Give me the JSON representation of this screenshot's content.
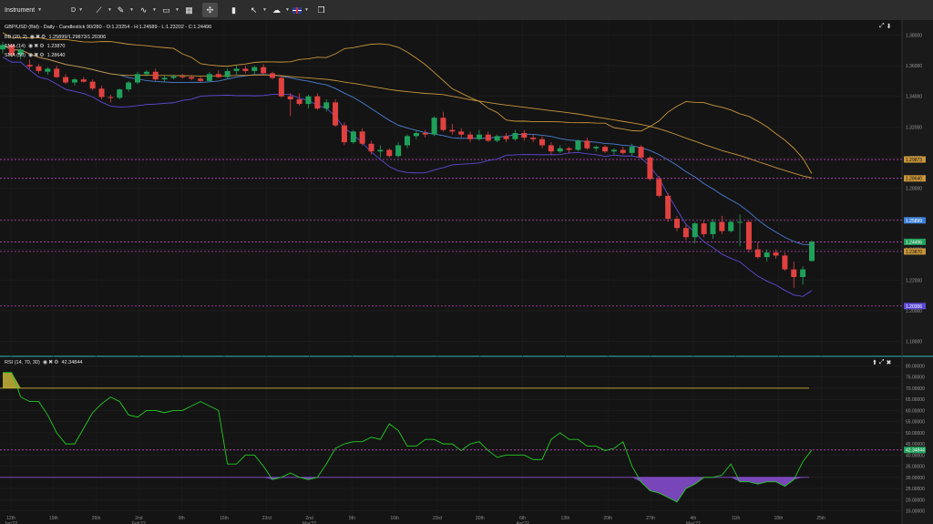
{
  "toolbar": {
    "instrument_label": "Instrument",
    "timeframe_label": "D",
    "icons": [
      "line-tool-icon",
      "pencil-icon",
      "indicator-icon",
      "layout-icon",
      "template-icon",
      "crosshair-icon",
      "bar-chart-icon",
      "cursor-icon",
      "draw-icon",
      "flag-icon",
      "window-icon"
    ]
  },
  "main_legend": {
    "header": "GBP/USD (Bid) - Daily - Candlestick   90/280 - O:1.23254 - H:1.24589 - L:1.23202 - C:1.24496",
    "bb": {
      "name": "BB (20, 2)",
      "value": "1.25899/1.29873/1.20306"
    },
    "sma14": {
      "name": "SMA (14)",
      "value": "1.23870"
    },
    "sma50": {
      "name": "SMA (50)",
      "value": "1.28640"
    }
  },
  "rsi_legend": {
    "name": "RSI (14, 70, 30)",
    "value": "42.34844"
  },
  "colors": {
    "up": "#1fa05a",
    "down": "#e0413f",
    "bb_upper_lower": "#c8953a",
    "sma14": "#4a7fd6",
    "sma50_lower": "#5c4ad6",
    "rsi_line": "#22cc22",
    "rsi_fill_low": "#8a4fd6",
    "rsi_fill_high": "#c8b43a",
    "dashed": "#d050d0"
  },
  "chart_data": {
    "type": "candlestick",
    "price_axis": {
      "ticks": [
        "1.38000",
        "1.36000",
        "1.34000",
        "1.32000",
        "1.30000",
        "1.28000",
        "1.26000",
        "1.24000",
        "1.22000",
        "1.20000",
        "1.18000"
      ],
      "ylim": [
        1.175,
        1.385
      ]
    },
    "price_badges": [
      {
        "value": "1.29873",
        "color": "#c8953a",
        "text_color": "#111111"
      },
      {
        "value": "1.28640",
        "color": "#c8953a",
        "text_color": "#111111"
      },
      {
        "value": "1.25899",
        "color": "#3a7fd6",
        "text_color": "#ffffff"
      },
      {
        "value": "1.24496",
        "color": "#1fa05a",
        "text_color": "#ffffff"
      },
      {
        "value": "1.23870",
        "color": "#c8953a",
        "text_color": "#111111"
      },
      {
        "value": "1.20306",
        "color": "#5c4ad6",
        "text_color": "#ffffff"
      }
    ],
    "horizontal_levels": [
      1.29873,
      1.2864,
      1.25899,
      1.24496,
      1.2387,
      1.20306
    ],
    "candles": [
      [
        1.3706,
        1.3755,
        1.368,
        1.3735
      ],
      [
        1.3735,
        1.374,
        1.3655,
        1.367
      ],
      [
        1.367,
        1.3715,
        1.364,
        1.3705
      ],
      [
        1.3605,
        1.364,
        1.358,
        1.3595
      ],
      [
        1.3595,
        1.361,
        1.355,
        1.3565
      ],
      [
        1.356,
        1.359,
        1.354,
        1.358
      ],
      [
        1.358,
        1.36,
        1.352,
        1.3525
      ],
      [
        1.3525,
        1.3545,
        1.348,
        1.349
      ],
      [
        1.349,
        1.352,
        1.347,
        1.351
      ],
      [
        1.351,
        1.3525,
        1.349,
        1.3495
      ],
      [
        1.3495,
        1.351,
        1.344,
        1.345
      ],
      [
        1.345,
        1.347,
        1.338,
        1.3395
      ],
      [
        1.3395,
        1.341,
        1.336,
        1.339
      ],
      [
        1.339,
        1.345,
        1.338,
        1.3445
      ],
      [
        1.3445,
        1.35,
        1.343,
        1.349
      ],
      [
        1.349,
        1.356,
        1.348,
        1.3545
      ],
      [
        1.3545,
        1.357,
        1.353,
        1.356
      ],
      [
        1.356,
        1.358,
        1.35,
        1.351
      ],
      [
        1.351,
        1.354,
        1.349,
        1.352
      ],
      [
        1.352,
        1.354,
        1.351,
        1.353
      ],
      [
        1.353,
        1.3545,
        1.3515,
        1.3525
      ],
      [
        1.3525,
        1.354,
        1.3505,
        1.3515
      ],
      [
        1.3515,
        1.353,
        1.349,
        1.35
      ],
      [
        1.35,
        1.356,
        1.3495,
        1.3545
      ],
      [
        1.3545,
        1.357,
        1.352,
        1.3525
      ],
      [
        1.3525,
        1.358,
        1.3515,
        1.3565
      ],
      [
        1.3565,
        1.36,
        1.354,
        1.358
      ],
      [
        1.358,
        1.36,
        1.355,
        1.3565
      ],
      [
        1.3565,
        1.36,
        1.3545,
        1.359
      ],
      [
        1.359,
        1.361,
        1.354,
        1.355
      ],
      [
        1.355,
        1.356,
        1.351,
        1.352
      ],
      [
        1.352,
        1.354,
        1.339,
        1.34
      ],
      [
        1.34,
        1.342,
        1.327,
        1.338
      ],
      [
        1.338,
        1.342,
        1.334,
        1.335
      ],
      [
        1.335,
        1.341,
        1.332,
        1.34
      ],
      [
        1.34,
        1.342,
        1.331,
        1.332
      ],
      [
        1.332,
        1.338,
        1.33,
        1.336
      ],
      [
        1.336,
        1.338,
        1.32,
        1.321
      ],
      [
        1.321,
        1.323,
        1.308,
        1.31
      ],
      [
        1.31,
        1.318,
        1.309,
        1.317
      ],
      [
        1.317,
        1.319,
        1.308,
        1.309
      ],
      [
        1.309,
        1.311,
        1.302,
        1.304
      ],
      [
        1.304,
        1.308,
        1.3,
        1.305
      ],
      [
        1.305,
        1.306,
        1.3,
        1.301
      ],
      [
        1.301,
        1.31,
        1.3,
        1.308
      ],
      [
        1.308,
        1.315,
        1.306,
        1.314
      ],
      [
        1.314,
        1.318,
        1.312,
        1.316
      ],
      [
        1.316,
        1.318,
        1.313,
        1.315
      ],
      [
        1.315,
        1.327,
        1.314,
        1.326
      ],
      [
        1.326,
        1.33,
        1.317,
        1.318
      ],
      [
        1.318,
        1.322,
        1.315,
        1.317
      ],
      [
        1.317,
        1.319,
        1.313,
        1.315
      ],
      [
        1.315,
        1.317,
        1.31,
        1.312
      ],
      [
        1.312,
        1.318,
        1.311,
        1.315
      ],
      [
        1.315,
        1.317,
        1.31,
        1.311
      ],
      [
        1.311,
        1.315,
        1.31,
        1.314
      ],
      [
        1.314,
        1.316,
        1.31,
        1.312
      ],
      [
        1.312,
        1.318,
        1.311,
        1.316
      ],
      [
        1.316,
        1.318,
        1.311,
        1.313
      ],
      [
        1.313,
        1.315,
        1.31,
        1.312
      ],
      [
        1.312,
        1.314,
        1.306,
        1.308
      ],
      [
        1.308,
        1.31,
        1.302,
        1.304
      ],
      [
        1.304,
        1.308,
        1.303,
        1.306
      ],
      [
        1.306,
        1.307,
        1.303,
        1.305
      ],
      [
        1.305,
        1.312,
        1.304,
        1.311
      ],
      [
        1.311,
        1.313,
        1.305,
        1.306
      ],
      [
        1.306,
        1.308,
        1.304,
        1.307
      ],
      [
        1.307,
        1.308,
        1.303,
        1.304
      ],
      [
        1.304,
        1.306,
        1.302,
        1.305
      ],
      [
        1.305,
        1.307,
        1.302,
        1.303
      ],
      [
        1.303,
        1.309,
        1.301,
        1.307
      ],
      [
        1.307,
        1.308,
        1.299,
        1.3
      ],
      [
        1.3,
        1.301,
        1.285,
        1.286
      ],
      [
        1.286,
        1.288,
        1.274,
        1.275
      ],
      [
        1.275,
        1.277,
        1.258,
        1.26
      ],
      [
        1.26,
        1.262,
        1.252,
        1.254
      ],
      [
        1.254,
        1.256,
        1.246,
        1.248
      ],
      [
        1.248,
        1.258,
        1.244,
        1.257
      ],
      [
        1.257,
        1.259,
        1.248,
        1.25
      ],
      [
        1.25,
        1.26,
        1.247,
        1.258
      ],
      [
        1.258,
        1.262,
        1.25,
        1.252
      ],
      [
        1.252,
        1.259,
        1.251,
        1.258
      ],
      [
        1.258,
        1.263,
        1.242,
        1.258
      ],
      [
        1.258,
        1.259,
        1.238,
        1.24
      ],
      [
        1.24,
        1.245,
        1.234,
        1.235
      ],
      [
        1.235,
        1.24,
        1.232,
        1.238
      ],
      [
        1.238,
        1.24,
        1.234,
        1.236
      ],
      [
        1.236,
        1.238,
        1.226,
        1.227
      ],
      [
        1.227,
        1.232,
        1.215,
        1.222
      ],
      [
        1.222,
        1.229,
        1.217,
        1.227
      ],
      [
        1.2325,
        1.2459,
        1.232,
        1.245
      ]
    ],
    "date_labels": [
      "12th\nJan'22",
      "19th",
      "26th",
      "2nd\nFeb'22",
      "9th",
      "16th",
      "23rd",
      "2nd\nMar'22",
      "9th",
      "16th",
      "23rd",
      "30th",
      "6th\nApr'22",
      "13th",
      "20th",
      "27th",
      "4th\nMay'22",
      "11th",
      "18th",
      "25th"
    ],
    "rsi": {
      "ticks": [
        "80.00000",
        "75.00000",
        "70.00000",
        "65.00000",
        "60.00000",
        "55.00000",
        "50.00000",
        "45.00000",
        "40.00000",
        "35.00000",
        "30.00000",
        "25.00000",
        "20.00000",
        "15.00000"
      ],
      "ylim": [
        14,
        81
      ],
      "overbought": 70,
      "oversold": 30,
      "current_label": "42.34844",
      "values": [
        77,
        77,
        66,
        64,
        64,
        58,
        50,
        45,
        45,
        52,
        59,
        63,
        66,
        64,
        58,
        57,
        60,
        60,
        59,
        60,
        60,
        62,
        64,
        62,
        60,
        36,
        36,
        40,
        40,
        35,
        29,
        30,
        32,
        30,
        29,
        30,
        36,
        43,
        45,
        46,
        46,
        48,
        47,
        54,
        51,
        44,
        44,
        47,
        47,
        45,
        45,
        42,
        45,
        46,
        42,
        39,
        40,
        40,
        40,
        38,
        38,
        47,
        50,
        47,
        47,
        44,
        44,
        42,
        43,
        46,
        35,
        28,
        24,
        23,
        21,
        19,
        25,
        27,
        30,
        30,
        31,
        36,
        28,
        28,
        27,
        28,
        28,
        26,
        29,
        37,
        42.3
      ]
    }
  }
}
